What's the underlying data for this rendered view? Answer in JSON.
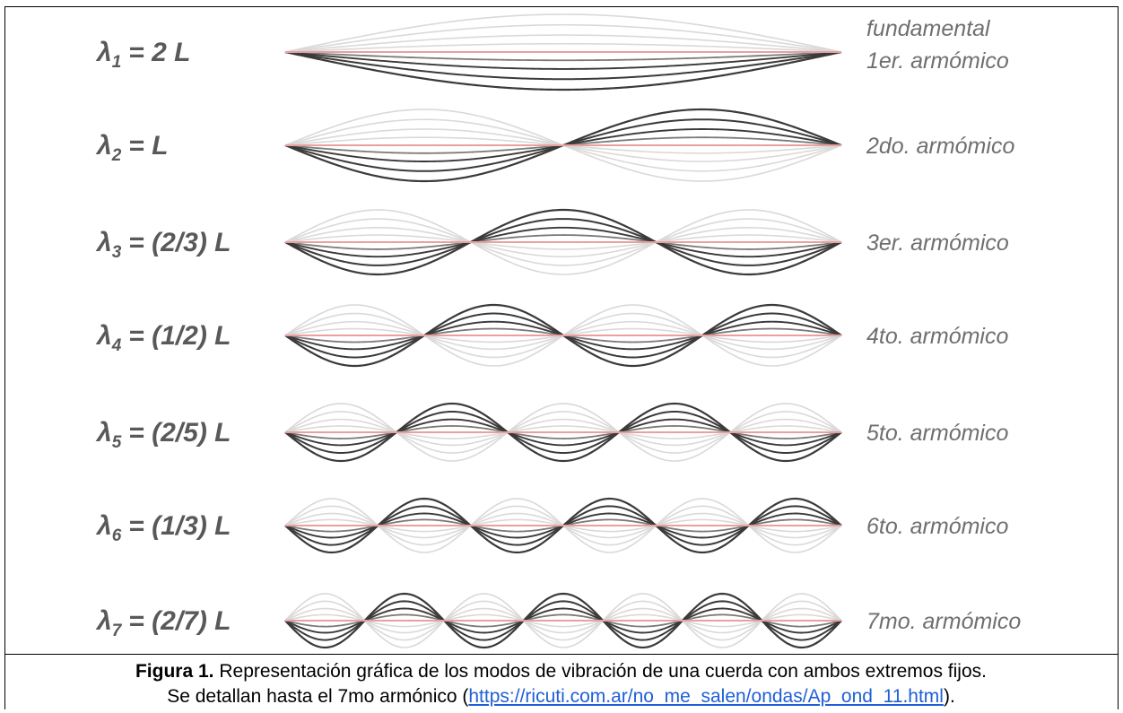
{
  "modes": [
    {
      "n": 1,
      "lambda_symbol": "λ",
      "subscript": "1",
      "expression": "= 2 L",
      "label_lines": [
        "fundamental",
        "1er. armómico"
      ]
    },
    {
      "n": 2,
      "lambda_symbol": "λ",
      "subscript": "2",
      "expression": "=  L",
      "label_lines": [
        "2do. armómico"
      ]
    },
    {
      "n": 3,
      "lambda_symbol": "λ",
      "subscript": "3",
      "expression": "= (2/3) L",
      "label_lines": [
        "3er. armómico"
      ]
    },
    {
      "n": 4,
      "lambda_symbol": "λ",
      "subscript": "4",
      "expression": "= (1/2) L",
      "label_lines": [
        "4to. armómico"
      ]
    },
    {
      "n": 5,
      "lambda_symbol": "λ",
      "subscript": "5",
      "expression": "= (2/5) L",
      "label_lines": [
        "5to. armómico"
      ]
    },
    {
      "n": 6,
      "lambda_symbol": "λ",
      "subscript": "6",
      "expression": "= (1/3) L",
      "label_lines": [
        "6to. armómico"
      ]
    },
    {
      "n": 7,
      "lambda_symbol": "λ",
      "subscript": "7",
      "expression": "= (2/7) L",
      "label_lines": [
        "7mo. armómico"
      ]
    }
  ],
  "caption": {
    "figure_label": "Figura 1.",
    "text_line1": " Representación gráfica de los modos de vibración de una cuerda con ambos extremos fijos.",
    "text_line2_before": "Se detallan hasta el 7mo armónico (",
    "link": "https://ricuti.com.ar/no_me_salen/ondas/Ap_ond_11.html",
    "text_line2_after": ")."
  },
  "colors": {
    "equilibrium_line": "#e8a0a0",
    "string_dark": "#3a3a3a",
    "string_mid": "#7a7a7a",
    "string_light": "#d9d9d9",
    "label_text": "#6f6f6f",
    "link": "#1f5fd6"
  }
}
